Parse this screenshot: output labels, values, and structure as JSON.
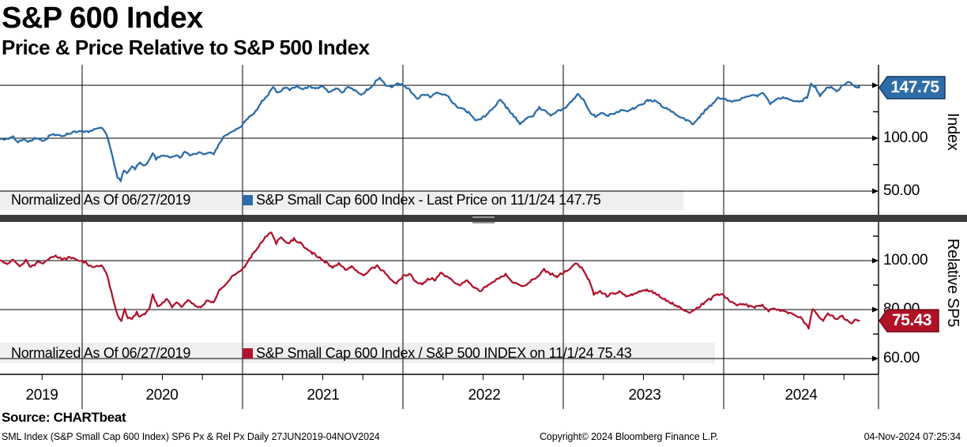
{
  "header": {
    "title": "S&P 600 Index",
    "subtitle": "Price & Price Relative to S&P 500 Index"
  },
  "panels": {
    "top": {
      "normalized_label": "Normalized As Of 06/27/2019",
      "series_label": "S&P Small Cap 600 Index - Last Price on 11/1/24 147.75",
      "badge": "147.75",
      "axis_title": "Index",
      "tick_labels": [
        "100.00",
        "50.00"
      ]
    },
    "bottom": {
      "normalized_label": "Normalized As Of 06/27/2019",
      "series_label": "S&P Small Cap 600 Index / S&P 500 INDEX on 11/1/24 75.43",
      "badge": "75.43",
      "axis_title": "Relative SP5",
      "tick_labels": [
        "100.00",
        "80.00",
        "60.00"
      ]
    }
  },
  "x_axis": {
    "years": [
      "2019",
      "2020",
      "2021",
      "2022",
      "2023",
      "2024"
    ]
  },
  "footer": {
    "source": "Source: CHARTbeat",
    "left": "SML Index (S&P Small Cap 600 Index) SP6 Px & Rel Px  Daily 27JUN2019-04NOV2024",
    "center": "Copyright© 2024 Bloomberg Finance L.P.",
    "right": "04-Nov-2024 07:25:34"
  },
  "colors": {
    "line_blue": "#2B6CA9",
    "line_red": "#B0142F",
    "badge_blue": "#2E6DA8",
    "badge_red": "#B01226",
    "legend_bg": "#EFEFEF",
    "separator": "#3B3B3B"
  },
  "chart_data": [
    {
      "type": "line",
      "name": "S&P Small Cap 600 Index - Last Price (normalized)",
      "color": "#2B6CA9",
      "normalized_as_of": "06/27/2019",
      "last": {
        "date": "11/1/24",
        "value": 147.75
      },
      "x_unit": "decimal_year",
      "x_range": [
        2019.49,
        2024.845
      ],
      "y_ticks": [
        50,
        100,
        150
      ],
      "y_minor_ticks": [
        75,
        125
      ],
      "ylim": [
        33,
        169
      ],
      "legend_position": "bottom-inside",
      "grid": true,
      "points": [
        [
          2019.49,
          100
        ],
        [
          2019.53,
          99
        ],
        [
          2019.57,
          101
        ],
        [
          2019.6,
          96.5
        ],
        [
          2019.64,
          99
        ],
        [
          2019.67,
          96.5
        ],
        [
          2019.71,
          99.5
        ],
        [
          2019.75,
          98
        ],
        [
          2019.79,
          101
        ],
        [
          2019.83,
          103
        ],
        [
          2019.87,
          102
        ],
        [
          2019.91,
          104.5
        ],
        [
          2019.96,
          106
        ],
        [
          2020.0,
          107
        ],
        [
          2020.04,
          106
        ],
        [
          2020.08,
          108.5
        ],
        [
          2020.12,
          110
        ],
        [
          2020.15,
          105
        ],
        [
          2020.18,
          90
        ],
        [
          2020.22,
          63
        ],
        [
          2020.24,
          60
        ],
        [
          2020.26,
          70
        ],
        [
          2020.28,
          66
        ],
        [
          2020.31,
          73
        ],
        [
          2020.33,
          70.5
        ],
        [
          2020.36,
          76
        ],
        [
          2020.38,
          73
        ],
        [
          2020.41,
          78
        ],
        [
          2020.44,
          86
        ],
        [
          2020.46,
          80
        ],
        [
          2020.49,
          82.5
        ],
        [
          2020.52,
          84
        ],
        [
          2020.55,
          81.5
        ],
        [
          2020.58,
          85
        ],
        [
          2020.61,
          83
        ],
        [
          2020.64,
          87.5
        ],
        [
          2020.67,
          85.5
        ],
        [
          2020.7,
          84
        ],
        [
          2020.73,
          87
        ],
        [
          2020.76,
          85.5
        ],
        [
          2020.79,
          88
        ],
        [
          2020.82,
          86
        ],
        [
          2020.85,
          94
        ],
        [
          2020.88,
          101
        ],
        [
          2020.92,
          105
        ],
        [
          2020.96,
          109
        ],
        [
          2021.0,
          112
        ],
        [
          2021.04,
          119
        ],
        [
          2021.08,
          126
        ],
        [
          2021.12,
          134
        ],
        [
          2021.16,
          141
        ],
        [
          2021.19,
          147
        ],
        [
          2021.22,
          143
        ],
        [
          2021.26,
          148
        ],
        [
          2021.3,
          146
        ],
        [
          2021.34,
          150
        ],
        [
          2021.38,
          147
        ],
        [
          2021.42,
          148.5
        ],
        [
          2021.46,
          146
        ],
        [
          2021.5,
          148
        ],
        [
          2021.54,
          143.5
        ],
        [
          2021.58,
          146.5
        ],
        [
          2021.62,
          143
        ],
        [
          2021.66,
          147.5
        ],
        [
          2021.7,
          145
        ],
        [
          2021.74,
          142
        ],
        [
          2021.78,
          146
        ],
        [
          2021.82,
          151
        ],
        [
          2021.855,
          157
        ],
        [
          2021.89,
          150
        ],
        [
          2021.93,
          147.5
        ],
        [
          2021.97,
          151.5
        ],
        [
          2022.01,
          150
        ],
        [
          2022.05,
          145
        ],
        [
          2022.09,
          137.5
        ],
        [
          2022.13,
          142
        ],
        [
          2022.17,
          139.5
        ],
        [
          2022.21,
          144
        ],
        [
          2022.25,
          141.5
        ],
        [
          2022.29,
          138
        ],
        [
          2022.33,
          131
        ],
        [
          2022.37,
          128.5
        ],
        [
          2022.41,
          124
        ],
        [
          2022.45,
          116.5
        ],
        [
          2022.49,
          119.5
        ],
        [
          2022.53,
          123
        ],
        [
          2022.57,
          129
        ],
        [
          2022.61,
          136
        ],
        [
          2022.65,
          128
        ],
        [
          2022.69,
          121
        ],
        [
          2022.73,
          114
        ],
        [
          2022.77,
          118.5
        ],
        [
          2022.81,
          121
        ],
        [
          2022.85,
          129
        ],
        [
          2022.88,
          126.5
        ],
        [
          2022.92,
          122.5
        ],
        [
          2022.96,
          125
        ],
        [
          2023.0,
          127
        ],
        [
          2023.05,
          134
        ],
        [
          2023.09,
          141
        ],
        [
          2023.13,
          135
        ],
        [
          2023.17,
          123
        ],
        [
          2023.2,
          121
        ],
        [
          2023.24,
          124.5
        ],
        [
          2023.28,
          122
        ],
        [
          2023.32,
          124
        ],
        [
          2023.36,
          126.5
        ],
        [
          2023.4,
          124.5
        ],
        [
          2023.44,
          128
        ],
        [
          2023.48,
          131
        ],
        [
          2023.53,
          136.5
        ],
        [
          2023.57,
          135
        ],
        [
          2023.61,
          131
        ],
        [
          2023.65,
          128
        ],
        [
          2023.69,
          124
        ],
        [
          2023.73,
          120
        ],
        [
          2023.77,
          116.5
        ],
        [
          2023.81,
          114
        ],
        [
          2023.85,
          120
        ],
        [
          2023.89,
          127
        ],
        [
          2023.93,
          133
        ],
        [
          2023.97,
          139.5
        ],
        [
          2024.01,
          137
        ],
        [
          2024.05,
          134
        ],
        [
          2024.09,
          136.5
        ],
        [
          2024.13,
          139
        ],
        [
          2024.17,
          141
        ],
        [
          2024.21,
          139.5
        ],
        [
          2024.25,
          142
        ],
        [
          2024.29,
          132.5
        ],
        [
          2024.33,
          136
        ],
        [
          2024.37,
          138
        ],
        [
          2024.41,
          136
        ],
        [
          2024.45,
          134.5
        ],
        [
          2024.49,
          135.5
        ],
        [
          2024.52,
          139
        ],
        [
          2024.545,
          152
        ],
        [
          2024.57,
          149.5
        ],
        [
          2024.6,
          140.5
        ],
        [
          2024.64,
          146.5
        ],
        [
          2024.67,
          148
        ],
        [
          2024.71,
          143.5
        ],
        [
          2024.74,
          149
        ],
        [
          2024.78,
          153
        ],
        [
          2024.81,
          149
        ],
        [
          2024.845,
          147.75
        ]
      ]
    },
    {
      "type": "line",
      "name": "S&P Small Cap 600 Index / S&P 500 INDEX (normalized)",
      "color": "#B0142F",
      "normalized_as_of": "06/27/2019",
      "last": {
        "date": "11/1/24",
        "value": 75.43
      },
      "x_unit": "decimal_year",
      "x_range": [
        2019.49,
        2024.845
      ],
      "y_ticks": [
        60,
        80,
        100
      ],
      "y_minor_ticks": [
        70,
        90,
        110
      ],
      "ylim": [
        54,
        115
      ],
      "legend_position": "bottom-inside",
      "grid": true,
      "points": [
        [
          2019.49,
          100
        ],
        [
          2019.53,
          98.5
        ],
        [
          2019.57,
          100.5
        ],
        [
          2019.61,
          98
        ],
        [
          2019.65,
          100
        ],
        [
          2019.68,
          97.5
        ],
        [
          2019.72,
          99.5
        ],
        [
          2019.76,
          98.5
        ],
        [
          2019.8,
          101
        ],
        [
          2019.84,
          102
        ],
        [
          2019.88,
          100.5
        ],
        [
          2019.92,
          101.5
        ],
        [
          2019.96,
          100
        ],
        [
          2020.0,
          100.5
        ],
        [
          2020.04,
          98.5
        ],
        [
          2020.08,
          97.5
        ],
        [
          2020.12,
          98.5
        ],
        [
          2020.15,
          95.5
        ],
        [
          2020.18,
          88
        ],
        [
          2020.22,
          78
        ],
        [
          2020.245,
          76
        ],
        [
          2020.265,
          80
        ],
        [
          2020.285,
          76.5
        ],
        [
          2020.31,
          75.5
        ],
        [
          2020.34,
          78.5
        ],
        [
          2020.36,
          76.5
        ],
        [
          2020.39,
          78.5
        ],
        [
          2020.42,
          80.5
        ],
        [
          2020.44,
          86.5
        ],
        [
          2020.47,
          81.5
        ],
        [
          2020.5,
          83
        ],
        [
          2020.53,
          84
        ],
        [
          2020.56,
          81.5
        ],
        [
          2020.59,
          83.5
        ],
        [
          2020.62,
          81
        ],
        [
          2020.66,
          84
        ],
        [
          2020.7,
          82
        ],
        [
          2020.74,
          81
        ],
        [
          2020.78,
          84
        ],
        [
          2020.82,
          83
        ],
        [
          2020.86,
          88.5
        ],
        [
          2020.9,
          91
        ],
        [
          2020.94,
          93.5
        ],
        [
          2020.98,
          96
        ],
        [
          2021.02,
          98.5
        ],
        [
          2021.06,
          102
        ],
        [
          2021.1,
          105.5
        ],
        [
          2021.14,
          109
        ],
        [
          2021.18,
          111.5
        ],
        [
          2021.21,
          107
        ],
        [
          2021.24,
          109.5
        ],
        [
          2021.28,
          106.5
        ],
        [
          2021.32,
          108.5
        ],
        [
          2021.36,
          107
        ],
        [
          2021.4,
          104.5
        ],
        [
          2021.44,
          103
        ],
        [
          2021.48,
          101.5
        ],
        [
          2021.52,
          99.5
        ],
        [
          2021.56,
          97.5
        ],
        [
          2021.6,
          99
        ],
        [
          2021.64,
          96.5
        ],
        [
          2021.68,
          98
        ],
        [
          2021.72,
          95.5
        ],
        [
          2021.76,
          94.5
        ],
        [
          2021.8,
          96.5
        ],
        [
          2021.84,
          98
        ],
        [
          2021.88,
          95.5
        ],
        [
          2021.92,
          92.5
        ],
        [
          2021.96,
          91
        ],
        [
          2022.0,
          93.5
        ],
        [
          2022.04,
          94.5
        ],
        [
          2022.08,
          91.5
        ],
        [
          2022.12,
          90.5
        ],
        [
          2022.16,
          93
        ],
        [
          2022.2,
          92
        ],
        [
          2022.24,
          95
        ],
        [
          2022.28,
          93.5
        ],
        [
          2022.32,
          91.5
        ],
        [
          2022.36,
          90
        ],
        [
          2022.4,
          91.5
        ],
        [
          2022.44,
          89
        ],
        [
          2022.48,
          87.5
        ],
        [
          2022.52,
          89.5
        ],
        [
          2022.56,
          91
        ],
        [
          2022.6,
          93
        ],
        [
          2022.64,
          94.5
        ],
        [
          2022.68,
          92
        ],
        [
          2022.72,
          90.5
        ],
        [
          2022.76,
          89.5
        ],
        [
          2022.8,
          92
        ],
        [
          2022.84,
          94
        ],
        [
          2022.88,
          96.5
        ],
        [
          2022.92,
          94.5
        ],
        [
          2022.96,
          93.5
        ],
        [
          2023.0,
          95
        ],
        [
          2023.04,
          96.5
        ],
        [
          2023.08,
          98.5
        ],
        [
          2023.12,
          97
        ],
        [
          2023.16,
          92
        ],
        [
          2023.19,
          86.5
        ],
        [
          2023.23,
          87.5
        ],
        [
          2023.27,
          85.5
        ],
        [
          2023.31,
          86.5
        ],
        [
          2023.35,
          87.5
        ],
        [
          2023.39,
          86
        ],
        [
          2023.43,
          86.5
        ],
        [
          2023.47,
          87
        ],
        [
          2023.52,
          88
        ],
        [
          2023.56,
          87
        ],
        [
          2023.6,
          85.5
        ],
        [
          2023.64,
          84
        ],
        [
          2023.68,
          82.5
        ],
        [
          2023.72,
          81
        ],
        [
          2023.76,
          79.5
        ],
        [
          2023.8,
          79
        ],
        [
          2023.84,
          80.5
        ],
        [
          2023.88,
          82.5
        ],
        [
          2023.92,
          84.5
        ],
        [
          2023.96,
          86.5
        ],
        [
          2024.0,
          86
        ],
        [
          2024.04,
          83.5
        ],
        [
          2024.08,
          82
        ],
        [
          2024.12,
          82.5
        ],
        [
          2024.16,
          81.5
        ],
        [
          2024.2,
          81
        ],
        [
          2024.24,
          81.5
        ],
        [
          2024.28,
          79.5
        ],
        [
          2024.32,
          80
        ],
        [
          2024.36,
          79.5
        ],
        [
          2024.4,
          78.5
        ],
        [
          2024.44,
          78
        ],
        [
          2024.48,
          77
        ],
        [
          2024.51,
          74
        ],
        [
          2024.53,
          72.5
        ],
        [
          2024.555,
          80.5
        ],
        [
          2024.59,
          77.5
        ],
        [
          2024.62,
          76
        ],
        [
          2024.65,
          78
        ],
        [
          2024.68,
          77
        ],
        [
          2024.71,
          76
        ],
        [
          2024.74,
          77.5
        ],
        [
          2024.77,
          75.8
        ],
        [
          2024.8,
          74.8
        ],
        [
          2024.82,
          76
        ],
        [
          2024.845,
          75.43
        ]
      ]
    }
  ]
}
